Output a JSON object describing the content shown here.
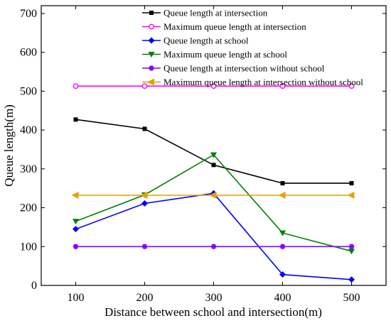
{
  "chart_data": {
    "type": "line",
    "xlabel": "Distance between school and intersection(m)",
    "ylabel": "Queue length(m)",
    "x": [
      100,
      200,
      300,
      400,
      500
    ],
    "xlim": [
      50,
      550
    ],
    "ylim": [
      0,
      720
    ],
    "xticks": [
      "100",
      "200",
      "300",
      "400",
      "500"
    ],
    "yticks": [
      "0",
      "100",
      "200",
      "300",
      "400",
      "500",
      "600",
      "700"
    ],
    "grid": false,
    "legend_position": "top-right",
    "series": [
      {
        "name": "Queue length at intersection",
        "color": "#000000",
        "marker": "square",
        "values": [
          427,
          403,
          310,
          263,
          263
        ]
      },
      {
        "name": "Maximum queue length at intersection",
        "color": "#ff00ff",
        "marker": "circle",
        "values": [
          513,
          513,
          513,
          513,
          513
        ]
      },
      {
        "name": "Queue length at school",
        "color": "#0000ff",
        "marker": "diamond",
        "values": [
          145,
          211,
          237,
          28,
          15
        ]
      },
      {
        "name": "Maximum queue length at school",
        "color": "#008000",
        "marker": "triangle-down",
        "values": [
          165,
          233,
          336,
          135,
          88
        ]
      },
      {
        "name": "Queue length at intersection without school",
        "color": "#8b00ff",
        "marker": "hexagon",
        "values": [
          100,
          100,
          100,
          100,
          100
        ]
      },
      {
        "name": "Maximum queue length at intersection without school",
        "color": "#e6a000",
        "marker": "triangle-left",
        "values": [
          232,
          232,
          232,
          232,
          232
        ]
      }
    ]
  }
}
